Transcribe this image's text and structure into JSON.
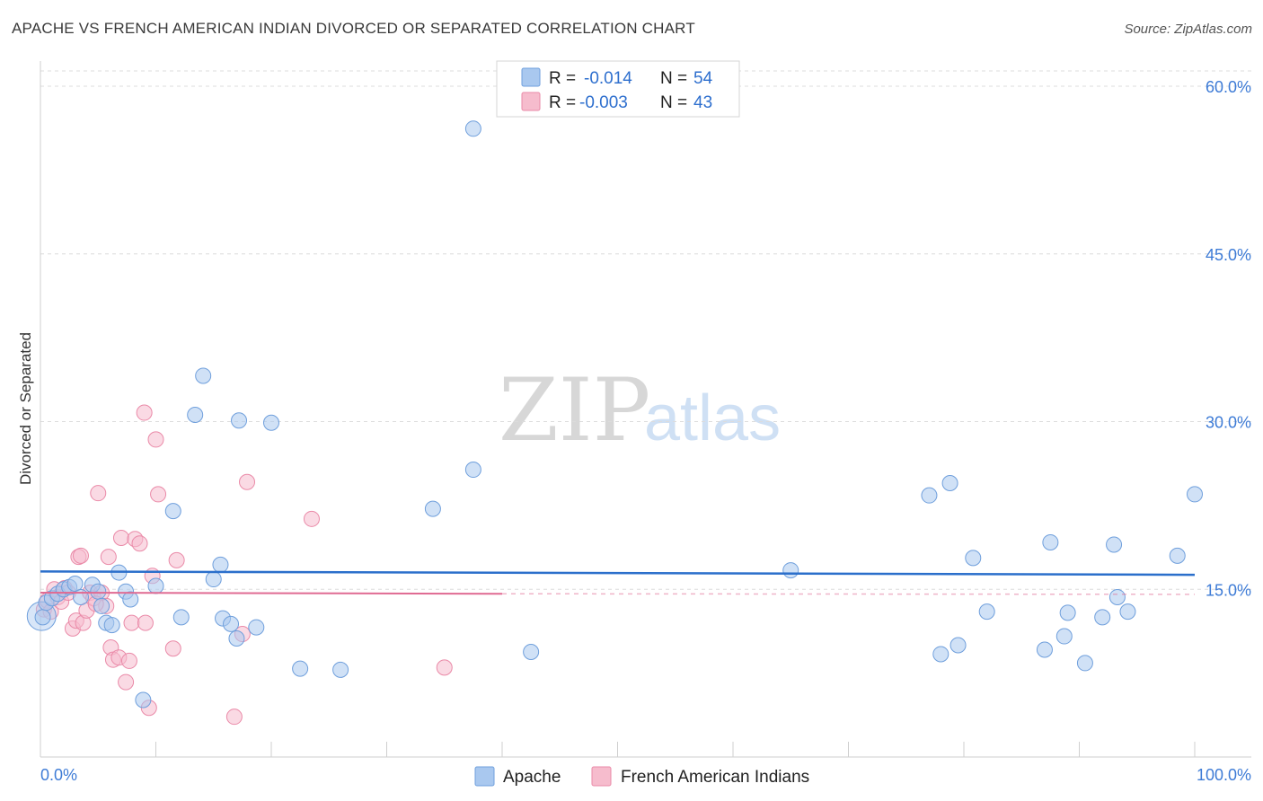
{
  "title": "APACHE VS FRENCH AMERICAN INDIAN DIVORCED OR SEPARATED CORRELATION CHART",
  "source": "Source: ZipAtlas.com",
  "watermark": {
    "zip": "ZIP",
    "atlas": "atlas"
  },
  "legend": {
    "rows": [
      {
        "r_label": "R =",
        "r_value": "-0.014",
        "n_label": "N =",
        "n_value": "54"
      },
      {
        "r_label": "R =",
        "r_value": "-0.003",
        "n_label": "N =",
        "n_value": "43"
      }
    ]
  },
  "bottom_legend": {
    "apache": "Apache",
    "french": "French American Indians"
  },
  "colors": {
    "apache_fill": "#a9c8ef",
    "apache_stroke": "#6f9fdc",
    "apache_line": "#2b6fcb",
    "french_fill": "#f6bccd",
    "french_stroke": "#ea8aa8",
    "french_line": "#e06b93",
    "grid": "#dcdcdc",
    "axis_label": "#3d7bd6"
  },
  "chart_data": {
    "type": "scatter",
    "title": "APACHE VS FRENCH AMERICAN INDIAN DIVORCED OR SEPARATED CORRELATION CHART",
    "xlabel": "",
    "ylabel": "Divorced or Separated",
    "xlim": [
      0,
      100
    ],
    "ylim": [
      0,
      60
    ],
    "x_tick_labels": [
      "0.0%",
      "100.0%"
    ],
    "y_ticks": [
      15,
      30,
      45,
      60
    ],
    "y_tick_labels": [
      "15.0%",
      "30.0%",
      "45.0%",
      "60.0%"
    ],
    "series": [
      {
        "name": "Apache",
        "R": -0.014,
        "N": 54,
        "trend": {
          "x": [
            0,
            100
          ],
          "y": [
            16.6,
            16.3
          ]
        },
        "points": [
          [
            0.2,
            12.5
          ],
          [
            0.5,
            13.8
          ],
          [
            1.0,
            14.2
          ],
          [
            1.5,
            14.6
          ],
          [
            2.0,
            15.0
          ],
          [
            2.5,
            15.2
          ],
          [
            3.0,
            15.5
          ],
          [
            3.5,
            14.3
          ],
          [
            4.5,
            15.4
          ],
          [
            5.0,
            14.8
          ],
          [
            5.3,
            13.5
          ],
          [
            5.7,
            12.0
          ],
          [
            6.2,
            11.8
          ],
          [
            6.8,
            16.5
          ],
          [
            7.4,
            14.8
          ],
          [
            7.8,
            14.1
          ],
          [
            8.9,
            5.1
          ],
          [
            10.0,
            15.3
          ],
          [
            11.5,
            22.0
          ],
          [
            12.2,
            12.5
          ],
          [
            13.4,
            30.6
          ],
          [
            14.1,
            34.1
          ],
          [
            15.0,
            15.9
          ],
          [
            15.6,
            17.2
          ],
          [
            15.8,
            12.4
          ],
          [
            16.5,
            11.9
          ],
          [
            17.0,
            10.6
          ],
          [
            17.2,
            30.1
          ],
          [
            18.7,
            11.6
          ],
          [
            20.0,
            29.9
          ],
          [
            22.5,
            7.9
          ],
          [
            26.0,
            7.8
          ],
          [
            34.0,
            22.2
          ],
          [
            37.5,
            25.7
          ],
          [
            37.5,
            56.2
          ],
          [
            42.5,
            9.4
          ],
          [
            65.0,
            16.7
          ],
          [
            77.0,
            23.4
          ],
          [
            78.0,
            9.2
          ],
          [
            78.8,
            24.5
          ],
          [
            79.5,
            10.0
          ],
          [
            80.8,
            17.8
          ],
          [
            82.0,
            13.0
          ],
          [
            87.0,
            9.6
          ],
          [
            87.5,
            19.2
          ],
          [
            88.7,
            10.8
          ],
          [
            89.0,
            12.9
          ],
          [
            90.5,
            8.4
          ],
          [
            92.0,
            12.5
          ],
          [
            93.0,
            19.0
          ],
          [
            93.3,
            14.3
          ],
          [
            94.2,
            13.0
          ],
          [
            98.5,
            18.0
          ],
          [
            100.0,
            23.5
          ]
        ]
      },
      {
        "name": "French American Indians",
        "R": -0.003,
        "N": 43,
        "trend": {
          "x": [
            0,
            40
          ],
          "y": [
            14.7,
            14.6
          ],
          "dashed_to": 100
        },
        "points": [
          [
            0.3,
            13.2
          ],
          [
            0.6,
            14.0
          ],
          [
            0.9,
            13.0
          ],
          [
            1.2,
            15.0
          ],
          [
            1.5,
            14.3
          ],
          [
            1.8,
            13.9
          ],
          [
            2.1,
            15.1
          ],
          [
            2.4,
            14.7
          ],
          [
            2.8,
            11.5
          ],
          [
            3.1,
            12.2
          ],
          [
            3.3,
            17.9
          ],
          [
            3.5,
            18.0
          ],
          [
            3.7,
            12.0
          ],
          [
            4.0,
            13.1
          ],
          [
            4.3,
            14.7
          ],
          [
            4.6,
            14.2
          ],
          [
            5.0,
            23.6
          ],
          [
            5.3,
            14.7
          ],
          [
            5.7,
            13.5
          ],
          [
            5.9,
            17.9
          ],
          [
            6.1,
            9.8
          ],
          [
            6.3,
            8.7
          ],
          [
            6.8,
            8.9
          ],
          [
            7.0,
            19.6
          ],
          [
            7.4,
            6.7
          ],
          [
            7.9,
            12.0
          ],
          [
            8.2,
            19.5
          ],
          [
            8.6,
            19.1
          ],
          [
            9.0,
            30.8
          ],
          [
            9.4,
            4.4
          ],
          [
            9.7,
            16.2
          ],
          [
            10.0,
            28.4
          ],
          [
            10.2,
            23.5
          ],
          [
            11.5,
            9.7
          ],
          [
            11.8,
            17.6
          ],
          [
            16.8,
            3.6
          ],
          [
            17.5,
            11.0
          ],
          [
            17.9,
            24.6
          ],
          [
            23.5,
            21.3
          ],
          [
            35.0,
            8.0
          ],
          [
            9.1,
            12.0
          ],
          [
            7.7,
            8.6
          ],
          [
            4.8,
            13.7
          ]
        ]
      }
    ]
  }
}
